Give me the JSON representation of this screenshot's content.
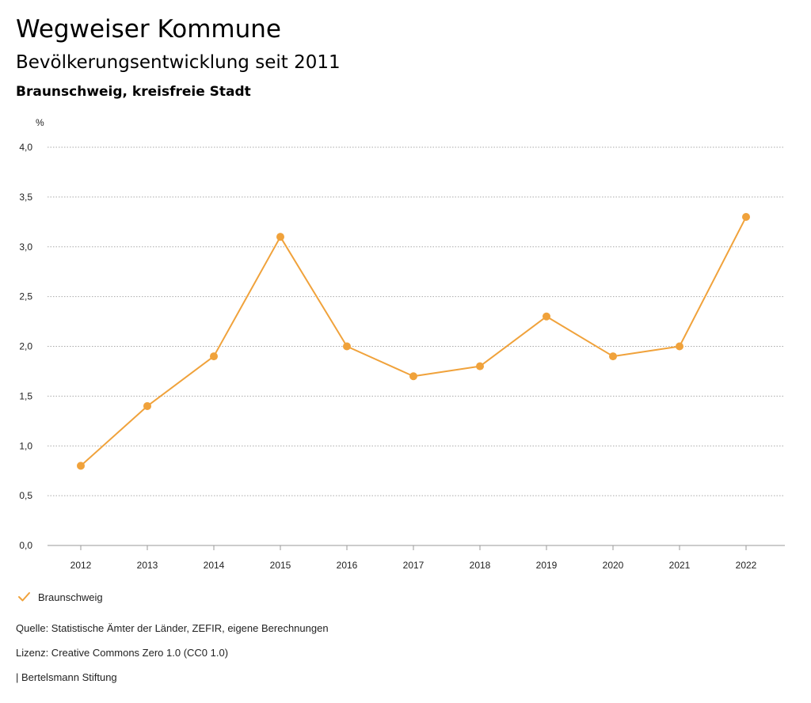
{
  "header": {
    "title": "Wegweiser Kommune",
    "subtitle": "Bevölkerungsentwicklung seit 2011",
    "region": "Braunschweig, kreisfreie Stadt"
  },
  "legend": {
    "label": "Braunschweig"
  },
  "footer": {
    "source": "Quelle: Statistische Ämter der Länder, ZEFIR, eigene Berechnungen",
    "license": "Lizenz: Creative Commons Zero 1.0 (CC0 1.0)",
    "publisher": "| Bertelsmann Stiftung"
  },
  "colors": {
    "series": "#f0a23b",
    "grid": "#aaaaaa",
    "text": "#222222"
  },
  "chart_data": {
    "type": "line",
    "ylabel": "%",
    "xlabel": "",
    "categories": [
      "2012",
      "2013",
      "2014",
      "2015",
      "2016",
      "2017",
      "2018",
      "2019",
      "2020",
      "2021",
      "2022"
    ],
    "series": [
      {
        "name": "Braunschweig",
        "values": [
          0.8,
          1.4,
          1.9,
          3.1,
          2.0,
          1.7,
          1.8,
          2.3,
          1.9,
          2.0,
          3.3
        ]
      }
    ],
    "ylim": [
      0,
      4
    ],
    "yticks": [
      0,
      0.5,
      1.0,
      1.5,
      2.0,
      2.5,
      3.0,
      3.5,
      4.0
    ],
    "ytick_labels": [
      "0,0",
      "0,5",
      "1,0",
      "1,5",
      "2,0",
      "2,5",
      "3,0",
      "3,5",
      "4,0"
    ],
    "grid": true,
    "legend_position": "bottom-left"
  }
}
